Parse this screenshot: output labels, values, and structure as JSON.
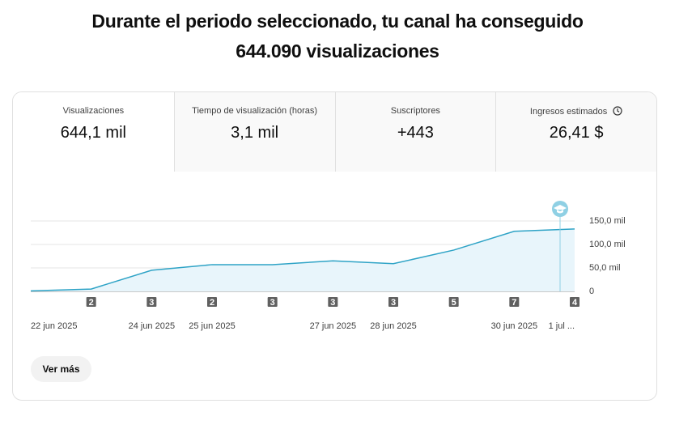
{
  "header": {
    "title_lines": [
      "Durante el periodo seleccionado, tu canal ha conseguido",
      "644.090 visualizaciones"
    ]
  },
  "tabs": [
    {
      "label": "Visualizaciones",
      "value": "644,1 mil"
    },
    {
      "label": "Tiempo de visualización (horas)",
      "value": "3,1 mil"
    },
    {
      "label": "Suscriptores",
      "value": "+443"
    },
    {
      "label": "Ingresos estimados",
      "value": "26,41 $"
    }
  ],
  "chart_data": {
    "type": "line",
    "categories": [
      "22 jun 2025",
      null,
      "24 jun 2025",
      "25 jun 2025",
      null,
      "27 jun 2025",
      "28 jun 2025",
      null,
      "30 jun 2025",
      "1 jul ..."
    ],
    "series": [
      {
        "name": "Visualizaciones",
        "color": "#2ea3c6",
        "values": [
          1,
          5,
          45,
          57,
          57,
          65,
          59,
          88,
          128,
          133
        ]
      }
    ],
    "badges": [
      null,
      2,
      3,
      2,
      3,
      3,
      3,
      5,
      7,
      4
    ],
    "ylim": [
      0,
      150
    ],
    "yticks": [
      0,
      {
        "value": 50,
        "label": "50,0 mil"
      },
      {
        "value": 100,
        "label": "100,0 mil"
      },
      {
        "value": 150,
        "label": "150,0 mil"
      }
    ],
    "grid": true
  },
  "button": {
    "label": "Ver más"
  }
}
